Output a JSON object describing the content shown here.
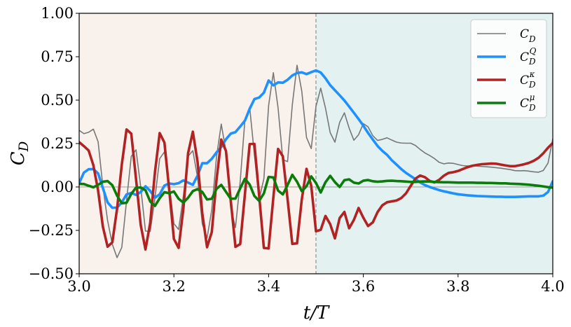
{
  "chart_data": {
    "type": "line",
    "xlabel": "t/T",
    "ylabel": "C_D",
    "xlim": [
      3.0,
      4.0
    ],
    "ylim": [
      -0.5,
      1.0
    ],
    "xticks": [
      3.0,
      3.2,
      3.4,
      3.6,
      3.8,
      4.0
    ],
    "xtick_labels": [
      "3.0",
      "3.2",
      "3.4",
      "3.6",
      "3.8",
      "4.0"
    ],
    "yticks": [
      -0.5,
      -0.25,
      0.0,
      0.25,
      0.5,
      0.75,
      1.0
    ],
    "ytick_labels": [
      "−0.50",
      "−0.25",
      "0.00",
      "0.25",
      "0.50",
      "0.75",
      "1.00"
    ],
    "grid": false,
    "legend_position": "top-right",
    "divider_x": 3.5,
    "regions": [
      {
        "x0": 3.0,
        "x1": 3.5,
        "color": "#f9f1ec"
      },
      {
        "x0": 3.5,
        "x1": 4.0,
        "color": "#e3f1f0"
      }
    ],
    "zero_line": true,
    "series": [
      {
        "name": "C_D",
        "color": "#777777",
        "width": 1.6,
        "x": [
          3.0,
          3.01,
          3.02,
          3.03,
          3.04,
          3.05,
          3.06,
          3.07,
          3.08,
          3.09,
          3.1,
          3.11,
          3.12,
          3.13,
          3.14,
          3.15,
          3.16,
          3.17,
          3.18,
          3.19,
          3.2,
          3.21,
          3.22,
          3.23,
          3.24,
          3.25,
          3.26,
          3.27,
          3.28,
          3.29,
          3.3,
          3.31,
          3.32,
          3.33,
          3.34,
          3.35,
          3.36,
          3.37,
          3.38,
          3.39,
          3.4,
          3.41,
          3.42,
          3.43,
          3.44,
          3.45,
          3.46,
          3.47,
          3.48,
          3.49,
          3.5,
          3.51,
          3.52,
          3.53,
          3.54,
          3.55,
          3.56,
          3.57,
          3.58,
          3.59,
          3.6,
          3.61,
          3.62,
          3.63,
          3.64,
          3.65,
          3.66,
          3.67,
          3.68,
          3.69,
          3.7,
          3.71,
          3.72,
          3.73,
          3.74,
          3.75,
          3.76,
          3.77,
          3.78,
          3.79,
          3.8,
          3.81,
          3.82,
          3.83,
          3.84,
          3.85,
          3.86,
          3.87,
          3.88,
          3.89,
          3.9,
          3.91,
          3.92,
          3.93,
          3.94,
          3.95,
          3.96,
          3.97,
          3.98,
          3.99,
          4.0
        ],
        "values": [
          0.326,
          0.307,
          0.315,
          0.333,
          0.26,
          0.004,
          -0.193,
          -0.33,
          -0.407,
          -0.348,
          -0.081,
          0.176,
          0.214,
          -0.001,
          -0.254,
          -0.256,
          -0.064,
          0.163,
          0.202,
          0.02,
          -0.211,
          -0.245,
          -0.052,
          0.177,
          0.209,
          0.055,
          -0.213,
          -0.295,
          -0.131,
          0.174,
          0.362,
          0.204,
          -0.12,
          -0.234,
          0.032,
          0.389,
          0.46,
          0.185,
          -0.071,
          0.047,
          0.469,
          0.658,
          0.454,
          0.157,
          0.146,
          0.472,
          0.701,
          0.552,
          0.285,
          0.221,
          0.464,
          0.569,
          0.455,
          0.313,
          0.258,
          0.372,
          0.427,
          0.339,
          0.269,
          0.301,
          0.365,
          0.346,
          0.295,
          0.268,
          0.274,
          0.283,
          0.27,
          0.258,
          0.253,
          0.252,
          0.252,
          0.239,
          0.216,
          0.196,
          0.181,
          0.164,
          0.142,
          0.133,
          0.138,
          0.136,
          0.129,
          0.123,
          0.121,
          0.123,
          0.12,
          0.118,
          0.116,
          0.114,
          0.111,
          0.108,
          0.104,
          0.1,
          0.094,
          0.093,
          0.094,
          0.091,
          0.087,
          0.085,
          0.095,
          0.138,
          0.277
        ]
      },
      {
        "name": "C_D^Q",
        "color": "#1e90ff",
        "width": 3.6,
        "x": [
          3.0,
          3.01,
          3.02,
          3.03,
          3.04,
          3.05,
          3.06,
          3.07,
          3.08,
          3.09,
          3.1,
          3.11,
          3.12,
          3.13,
          3.14,
          3.15,
          3.16,
          3.17,
          3.18,
          3.19,
          3.2,
          3.21,
          3.22,
          3.23,
          3.24,
          3.25,
          3.26,
          3.27,
          3.28,
          3.29,
          3.3,
          3.31,
          3.32,
          3.33,
          3.34,
          3.35,
          3.36,
          3.37,
          3.38,
          3.39,
          3.4,
          3.41,
          3.42,
          3.43,
          3.44,
          3.45,
          3.46,
          3.47,
          3.48,
          3.49,
          3.5,
          3.51,
          3.52,
          3.53,
          3.54,
          3.55,
          3.56,
          3.57,
          3.58,
          3.59,
          3.6,
          3.61,
          3.62,
          3.63,
          3.64,
          3.65,
          3.66,
          3.67,
          3.68,
          3.69,
          3.7,
          3.71,
          3.72,
          3.73,
          3.74,
          3.75,
          3.76,
          3.77,
          3.78,
          3.79,
          3.8,
          3.81,
          3.82,
          3.83,
          3.84,
          3.85,
          3.86,
          3.87,
          3.88,
          3.89,
          3.9,
          3.91,
          3.92,
          3.93,
          3.94,
          3.95,
          3.96,
          3.97,
          3.98,
          3.99,
          4.0
        ],
        "values": [
          0.022,
          0.083,
          0.102,
          0.103,
          0.078,
          -0.006,
          -0.089,
          -0.12,
          -0.119,
          -0.089,
          -0.043,
          -0.034,
          -0.046,
          -0.029,
          0.004,
          -0.023,
          -0.062,
          -0.043,
          0.008,
          0.02,
          0.016,
          0.022,
          0.038,
          0.025,
          0.012,
          0.066,
          0.137,
          0.137,
          0.162,
          0.199,
          0.23,
          0.275,
          0.307,
          0.316,
          0.348,
          0.382,
          0.45,
          0.506,
          0.515,
          0.543,
          0.613,
          0.585,
          0.602,
          0.6,
          0.617,
          0.642,
          0.656,
          0.66,
          0.65,
          0.661,
          0.671,
          0.659,
          0.626,
          0.586,
          0.557,
          0.528,
          0.498,
          0.463,
          0.427,
          0.391,
          0.353,
          0.311,
          0.273,
          0.236,
          0.208,
          0.185,
          0.154,
          0.129,
          0.103,
          0.081,
          0.063,
          0.045,
          0.026,
          0.011,
          0.0,
          -0.009,
          -0.018,
          -0.025,
          -0.031,
          -0.037,
          -0.042,
          -0.045,
          -0.048,
          -0.05,
          -0.052,
          -0.053,
          -0.054,
          -0.055,
          -0.056,
          -0.056,
          -0.057,
          -0.057,
          -0.057,
          -0.056,
          -0.055,
          -0.054,
          -0.054,
          -0.054,
          -0.05,
          -0.029,
          0.033
        ]
      },
      {
        "name": "C_D^κ",
        "color": "#b22222",
        "width": 3.6,
        "x": [
          3.0,
          3.01,
          3.02,
          3.03,
          3.04,
          3.05,
          3.06,
          3.07,
          3.08,
          3.09,
          3.1,
          3.11,
          3.12,
          3.13,
          3.14,
          3.15,
          3.16,
          3.17,
          3.18,
          3.19,
          3.2,
          3.21,
          3.22,
          3.23,
          3.24,
          3.25,
          3.26,
          3.27,
          3.28,
          3.29,
          3.3,
          3.31,
          3.32,
          3.33,
          3.34,
          3.35,
          3.36,
          3.37,
          3.38,
          3.39,
          3.4,
          3.41,
          3.42,
          3.43,
          3.44,
          3.45,
          3.46,
          3.47,
          3.48,
          3.49,
          3.5,
          3.51,
          3.52,
          3.53,
          3.54,
          3.55,
          3.56,
          3.57,
          3.58,
          3.59,
          3.6,
          3.61,
          3.62,
          3.63,
          3.64,
          3.65,
          3.66,
          3.67,
          3.68,
          3.69,
          3.7,
          3.71,
          3.72,
          3.73,
          3.74,
          3.75,
          3.76,
          3.77,
          3.78,
          3.79,
          3.8,
          3.81,
          3.82,
          3.83,
          3.84,
          3.85,
          3.86,
          3.87,
          3.88,
          3.89,
          3.9,
          3.91,
          3.92,
          3.93,
          3.94,
          3.95,
          3.96,
          3.97,
          3.98,
          3.99,
          4.0
        ],
        "values": [
          0.258,
          0.235,
          0.21,
          0.125,
          -0.021,
          -0.228,
          -0.344,
          -0.319,
          -0.126,
          0.129,
          0.331,
          0.307,
          0.047,
          -0.22,
          -0.36,
          -0.207,
          0.085,
          0.31,
          0.256,
          -0.013,
          -0.299,
          -0.351,
          -0.126,
          0.195,
          0.318,
          0.144,
          -0.153,
          -0.347,
          -0.26,
          0.041,
          0.273,
          0.207,
          -0.078,
          -0.345,
          -0.329,
          -0.041,
          0.247,
          0.248,
          -0.05,
          -0.351,
          -0.354,
          -0.061,
          0.219,
          0.177,
          -0.07,
          -0.328,
          -0.325,
          -0.073,
          0.104,
          0.006,
          -0.255,
          -0.247,
          -0.167,
          -0.214,
          -0.296,
          -0.179,
          -0.144,
          -0.238,
          -0.19,
          -0.121,
          -0.177,
          -0.225,
          -0.204,
          -0.145,
          -0.106,
          -0.088,
          -0.083,
          -0.078,
          -0.064,
          -0.037,
          0.006,
          0.048,
          0.066,
          0.056,
          0.035,
          0.026,
          0.041,
          0.065,
          0.081,
          0.085,
          0.092,
          0.103,
          0.114,
          0.122,
          0.127,
          0.131,
          0.133,
          0.135,
          0.134,
          0.129,
          0.124,
          0.12,
          0.12,
          0.125,
          0.131,
          0.139,
          0.151,
          0.168,
          0.194,
          0.226,
          0.253
        ]
      },
      {
        "name": "C_D^μ",
        "color": "#0a7c0a",
        "width": 3.6,
        "x": [
          3.0,
          3.01,
          3.02,
          3.03,
          3.04,
          3.05,
          3.06,
          3.07,
          3.08,
          3.09,
          3.1,
          3.11,
          3.12,
          3.13,
          3.14,
          3.15,
          3.16,
          3.17,
          3.18,
          3.19,
          3.2,
          3.21,
          3.22,
          3.23,
          3.24,
          3.25,
          3.26,
          3.27,
          3.28,
          3.29,
          3.3,
          3.31,
          3.32,
          3.33,
          3.34,
          3.35,
          3.36,
          3.37,
          3.38,
          3.39,
          3.4,
          3.41,
          3.42,
          3.43,
          3.44,
          3.45,
          3.46,
          3.47,
          3.48,
          3.49,
          3.5,
          3.51,
          3.52,
          3.53,
          3.54,
          3.55,
          3.56,
          3.57,
          3.58,
          3.59,
          3.6,
          3.61,
          3.62,
          3.63,
          3.64,
          3.65,
          3.66,
          3.67,
          3.68,
          3.69,
          3.7,
          3.71,
          3.72,
          3.73,
          3.74,
          3.75,
          3.76,
          3.77,
          3.78,
          3.79,
          3.8,
          3.81,
          3.82,
          3.83,
          3.84,
          3.85,
          3.86,
          3.87,
          3.88,
          3.89,
          3.9,
          3.91,
          3.92,
          3.93,
          3.94,
          3.95,
          3.96,
          3.97,
          3.98,
          3.99,
          4.0
        ],
        "values": [
          0.018,
          0.017,
          0.007,
          -0.002,
          0.012,
          0.03,
          0.034,
          0.01,
          -0.05,
          -0.094,
          -0.091,
          -0.04,
          -0.004,
          -0.003,
          -0.019,
          -0.084,
          -0.109,
          -0.065,
          -0.03,
          -0.036,
          -0.026,
          -0.068,
          -0.09,
          -0.062,
          -0.024,
          -0.012,
          -0.029,
          -0.072,
          -0.068,
          -0.011,
          0.012,
          -0.028,
          -0.068,
          -0.067,
          -0.008,
          0.047,
          0.014,
          -0.052,
          -0.08,
          -0.037,
          0.058,
          0.055,
          -0.021,
          -0.043,
          0.011,
          0.07,
          0.03,
          -0.024,
          0.004,
          0.061,
          0.023,
          -0.032,
          0.027,
          0.064,
          0.028,
          0.0,
          0.039,
          0.044,
          0.025,
          0.02,
          0.036,
          0.04,
          0.033,
          0.03,
          0.032,
          0.035,
          0.036,
          0.034,
          0.033,
          0.031,
          0.029,
          0.029,
          0.031,
          0.032,
          0.031,
          0.029,
          0.028,
          0.027,
          0.027,
          0.026,
          0.025,
          0.025,
          0.025,
          0.025,
          0.024,
          0.024,
          0.023,
          0.023,
          0.022,
          0.021,
          0.021,
          0.019,
          0.018,
          0.017,
          0.015,
          0.013,
          0.01,
          0.007,
          0.003,
          -0.001,
          -0.004
        ]
      }
    ]
  }
}
